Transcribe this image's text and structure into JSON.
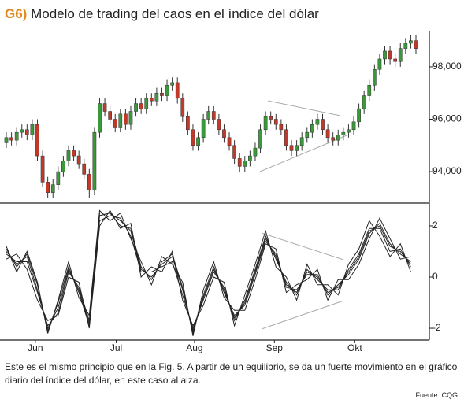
{
  "header": {
    "label": "G6)",
    "title": "Modelo de trading del caos en el índice del dólar"
  },
  "caption": "Este es el mismo principio que en la Fig. 5. A partir de un equilibrio, se da un fuerte movimiento en el gráfico diario del índice del dólar, en este caso al alza.",
  "source": "Fuente: CQG",
  "chart_data": [
    {
      "type": "candlestick",
      "up_color": "#3a9a3a",
      "down_color": "#c0392b",
      "xlim": [
        0,
        79
      ],
      "ylim": [
        92.8,
        99.35
      ],
      "yticks": [
        {
          "value": 94,
          "label": "94,000"
        },
        {
          "value": 96,
          "label": "96,000"
        },
        {
          "value": 98,
          "label": "98,000"
        }
      ],
      "open": [
        95.1,
        95.3,
        95.2,
        95.5,
        95.6,
        95.4,
        95.8,
        94.6,
        93.6,
        93.2,
        93.5,
        94.0,
        94.4,
        94.8,
        94.6,
        94.3,
        93.9,
        93.3,
        95.5,
        96.6,
        96.3,
        96.0,
        95.7,
        96.2,
        95.8,
        96.3,
        96.6,
        96.4,
        96.8,
        96.7,
        97.0,
        96.9,
        97.3,
        97.4,
        96.8,
        96.1,
        95.6,
        95.0,
        95.3,
        96.0,
        96.3,
        96.0,
        95.6,
        95.3,
        95.0,
        94.5,
        94.2,
        94.4,
        94.6,
        94.9,
        95.6,
        96.1,
        96.0,
        95.8,
        95.6,
        95.0,
        94.8,
        95.0,
        95.3,
        95.5,
        95.8,
        96.0,
        95.6,
        95.3,
        95.2,
        95.4,
        95.5,
        95.6,
        95.9,
        96.4,
        96.9,
        97.3,
        97.9,
        98.3,
        98.6,
        98.3,
        98.2,
        98.7,
        98.9,
        99.0
      ],
      "high": [
        95.5,
        95.5,
        95.7,
        95.8,
        95.8,
        96.0,
        96.0,
        94.8,
        93.8,
        93.7,
        94.2,
        94.6,
        95.0,
        95.0,
        94.8,
        94.5,
        94.1,
        95.7,
        96.8,
        96.8,
        96.5,
        96.2,
        96.4,
        96.4,
        96.5,
        96.8,
        96.8,
        97.0,
        97.0,
        97.2,
        97.2,
        97.5,
        97.6,
        97.6,
        97.0,
        96.3,
        95.8,
        95.5,
        96.2,
        96.5,
        96.5,
        96.2,
        95.8,
        95.5,
        95.2,
        94.7,
        94.6,
        94.8,
        95.1,
        95.8,
        96.3,
        96.3,
        96.2,
        96.0,
        95.8,
        95.2,
        95.2,
        95.5,
        95.7,
        96.0,
        96.2,
        96.2,
        95.8,
        95.5,
        95.6,
        95.7,
        95.8,
        96.1,
        96.6,
        97.1,
        97.5,
        98.1,
        98.5,
        98.8,
        98.8,
        98.5,
        98.9,
        99.1,
        99.2,
        99.2
      ],
      "low": [
        94.9,
        95.0,
        95.0,
        95.3,
        95.2,
        95.2,
        94.4,
        93.4,
        93.0,
        93.0,
        93.3,
        93.8,
        94.2,
        94.4,
        94.1,
        93.7,
        93.0,
        93.1,
        95.3,
        96.1,
        95.8,
        95.5,
        95.5,
        95.6,
        95.6,
        96.1,
        96.2,
        96.2,
        96.5,
        96.5,
        96.7,
        96.7,
        97.1,
        96.6,
        95.9,
        95.4,
        94.8,
        94.8,
        95.1,
        95.8,
        95.8,
        95.4,
        95.1,
        94.8,
        94.3,
        94.0,
        94.0,
        94.2,
        94.4,
        94.7,
        95.4,
        95.8,
        95.6,
        95.4,
        94.8,
        94.6,
        94.6,
        94.8,
        95.1,
        95.3,
        95.6,
        95.4,
        95.1,
        95.0,
        95.0,
        95.2,
        95.3,
        95.4,
        95.7,
        96.2,
        96.7,
        97.1,
        97.7,
        98.1,
        98.1,
        98.0,
        98.0,
        98.5,
        98.7,
        98.5
      ],
      "close": [
        95.3,
        95.2,
        95.5,
        95.6,
        95.4,
        95.8,
        94.6,
        93.6,
        93.2,
        93.5,
        94.0,
        94.4,
        94.8,
        94.6,
        94.3,
        93.9,
        93.3,
        95.5,
        96.6,
        96.3,
        96.0,
        95.7,
        96.2,
        95.8,
        96.3,
        96.6,
        96.4,
        96.8,
        96.7,
        97.0,
        96.9,
        97.3,
        97.4,
        96.8,
        96.1,
        95.6,
        95.0,
        95.3,
        96.0,
        96.3,
        96.0,
        95.6,
        95.3,
        95.0,
        94.5,
        94.2,
        94.4,
        94.6,
        94.9,
        95.6,
        96.1,
        96.0,
        95.8,
        95.6,
        95.0,
        94.8,
        95.0,
        95.3,
        95.5,
        95.8,
        96.0,
        95.6,
        95.3,
        95.2,
        95.4,
        95.5,
        95.6,
        95.9,
        96.4,
        96.9,
        97.3,
        97.9,
        98.3,
        98.6,
        98.3,
        98.2,
        98.7,
        98.9,
        99.0,
        98.7
      ]
    },
    {
      "type": "line",
      "xlim": [
        0,
        79
      ],
      "ylim": [
        -2.46,
        2.89
      ],
      "yticks": [
        2,
        0,
        -2
      ],
      "xticks": [
        {
          "value": 5.6,
          "label": "Jun"
        },
        {
          "value": 21.2,
          "label": "Jul"
        },
        {
          "value": 36.3,
          "label": "Aug"
        },
        {
          "value": 51.7,
          "label": "Sep"
        },
        {
          "value": 67.2,
          "label": "Okt"
        }
      ],
      "x": [
        0,
        2,
        4,
        6,
        8,
        10,
        12,
        14,
        16,
        18,
        20,
        22,
        24,
        26,
        28,
        30,
        32,
        34,
        36,
        38,
        40,
        42,
        44,
        46,
        48,
        50,
        52,
        54,
        56,
        58,
        60,
        62,
        64,
        66,
        68,
        70,
        72,
        74,
        76,
        78
      ],
      "series": [
        {
          "color": "#222222",
          "values": [
            1.0,
            0.5,
            0.8,
            -0.5,
            -2.0,
            -1.2,
            0.3,
            -0.5,
            -1.8,
            2.4,
            2.5,
            2.2,
            1.8,
            0.3,
            0.0,
            0.5,
            0.8,
            -0.5,
            -2.1,
            -0.8,
            0.3,
            -0.5,
            -1.6,
            -1.0,
            0.2,
            1.5,
            0.8,
            -0.3,
            -0.6,
            0.2,
            0.0,
            -0.6,
            -0.4,
            0.2,
            0.8,
            1.8,
            2.0,
            1.2,
            1.0,
            0.5
          ]
        },
        {
          "color": "#222222",
          "values": [
            0.7,
            0.9,
            0.3,
            -0.9,
            -1.7,
            -1.5,
            0.0,
            -0.2,
            -2.0,
            2.0,
            2.6,
            1.9,
            2.1,
            0.0,
            0.4,
            0.2,
            1.0,
            -0.9,
            -1.9,
            -1.1,
            0.0,
            -0.2,
            -1.9,
            -0.7,
            0.5,
            1.8,
            0.4,
            0.0,
            -0.9,
            0.5,
            -0.3,
            -0.3,
            -0.7,
            0.5,
            1.1,
            2.2,
            1.6,
            0.8,
            1.3,
            0.2
          ]
        },
        {
          "color": "#222222",
          "values": [
            1.2,
            0.2,
            1.0,
            -0.2,
            -2.2,
            -0.9,
            0.6,
            -0.8,
            -1.5,
            2.6,
            2.2,
            2.5,
            1.5,
            0.6,
            -0.3,
            0.8,
            0.5,
            -0.2,
            -2.3,
            -0.5,
            0.6,
            -0.8,
            -1.3,
            -1.3,
            -0.1,
            1.3,
            1.1,
            -0.6,
            -0.3,
            -0.1,
            0.3,
            -0.9,
            -0.1,
            -0.1,
            0.5,
            1.5,
            2.3,
            1.5,
            0.7,
            0.8
          ]
        },
        {
          "color": "#222222",
          "values": [
            0.9,
            0.6,
            0.6,
            -0.6,
            -1.9,
            -1.4,
            0.2,
            -0.4,
            -1.7,
            2.2,
            2.4,
            2.3,
            1.6,
            0.2,
            0.2,
            0.4,
            0.6,
            -0.7,
            -2.0,
            -0.9,
            0.2,
            -0.4,
            -1.7,
            -0.9,
            0.3,
            1.6,
            0.7,
            -0.2,
            -0.7,
            0.3,
            -0.1,
            -0.5,
            -0.5,
            0.3,
            0.9,
            1.9,
            1.9,
            1.0,
            1.1,
            0.4
          ]
        },
        {
          "color": "#222222",
          "values": [
            1.1,
            0.4,
            0.9,
            -0.3,
            -2.1,
            -1.0,
            0.4,
            -0.6,
            -1.9,
            2.5,
            2.5,
            2.0,
            1.9,
            0.4,
            -0.1,
            0.6,
            0.9,
            -0.4,
            -2.2,
            -0.7,
            0.4,
            -0.6,
            -1.5,
            -1.1,
            0.1,
            1.4,
            0.9,
            -0.4,
            -0.5,
            0.1,
            0.1,
            -0.7,
            -0.3,
            0.1,
            0.7,
            1.7,
            2.1,
            1.3,
            0.9,
            0.6
          ]
        }
      ]
    }
  ]
}
